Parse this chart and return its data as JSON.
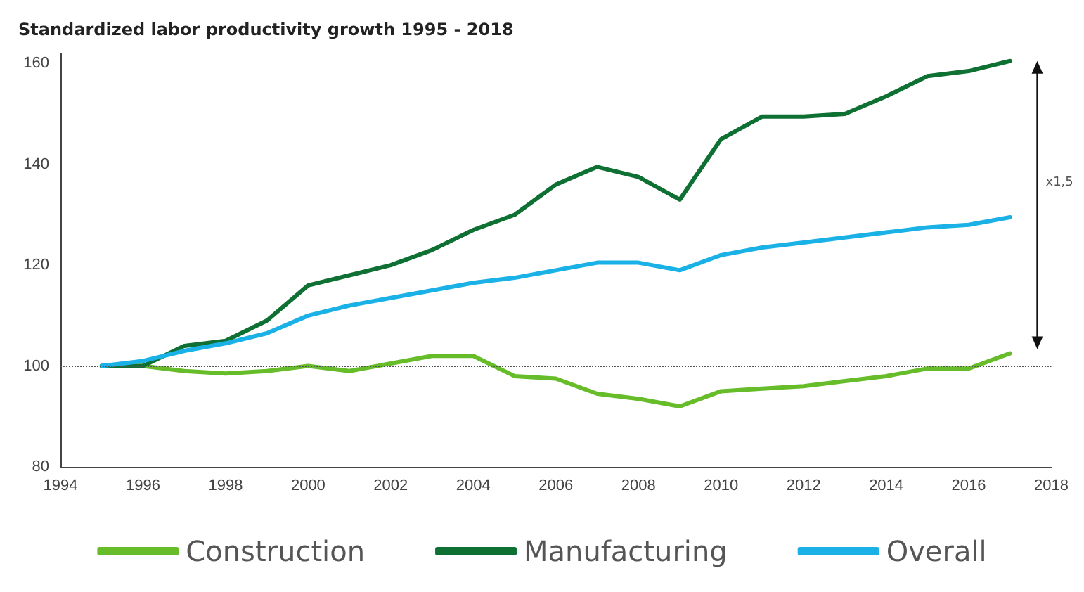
{
  "chart_data": {
    "type": "line",
    "title": "Standardized labor productivity growth 1995 - 2018",
    "x": [
      1995,
      1996,
      1997,
      1998,
      1999,
      2000,
      2001,
      2002,
      2003,
      2004,
      2005,
      2006,
      2007,
      2008,
      2009,
      2010,
      2011,
      2012,
      2013,
      2014,
      2015,
      2016,
      2017
    ],
    "series": [
      {
        "name": "Construction",
        "color": "#66bc29",
        "values": [
          100,
          100,
          99,
          98.5,
          99,
          100,
          99,
          100.5,
          102,
          102,
          98,
          97.5,
          94.5,
          93.5,
          92,
          95,
          95.5,
          96,
          97,
          98,
          99.5,
          99.5,
          102.5
        ]
      },
      {
        "name": "Manufacturing",
        "color": "#0f7033",
        "values": [
          100,
          100,
          104,
          105,
          109,
          116,
          118,
          120,
          123,
          127,
          130,
          136,
          139.5,
          137.5,
          133,
          145,
          149.5,
          149.5,
          150,
          153.5,
          157.5,
          158.5,
          160.5
        ]
      },
      {
        "name": "Overall",
        "color": "#19b1e6",
        "values": [
          100,
          101,
          103,
          104.5,
          106.5,
          110,
          112,
          113.5,
          115,
          116.5,
          117.5,
          119,
          120.5,
          120.5,
          119,
          122,
          123.5,
          124.5,
          125.5,
          126.5,
          127.5,
          128,
          129.5
        ]
      }
    ],
    "xlim": [
      1994,
      2018
    ],
    "xticks": [
      1994,
      1996,
      1998,
      2000,
      2002,
      2004,
      2006,
      2008,
      2010,
      2012,
      2014,
      2016,
      2018
    ],
    "ylim": [
      80,
      162
    ],
    "yticks": [
      80,
      100,
      120,
      140,
      160
    ],
    "ref_lines": [
      {
        "axis": "y",
        "value": 100,
        "color": "#555555",
        "line_style": "dotted"
      }
    ],
    "annotations": [
      "x1,5"
    ],
    "grid": false,
    "legend": "bottom",
    "marker": "none",
    "line_style": "solid"
  }
}
